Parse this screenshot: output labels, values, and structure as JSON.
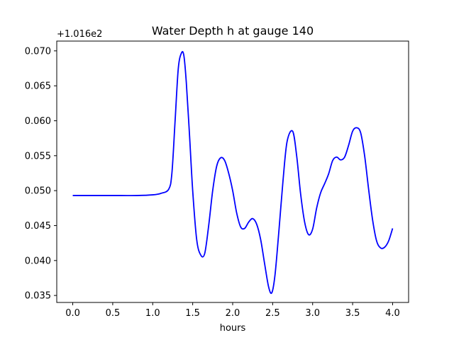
{
  "chart_data": {
    "type": "line",
    "title": "Water Depth h at gauge 140",
    "xlabel": "hours",
    "ylabel": "",
    "y_offset_label": "+1.016e2",
    "xlim": [
      -0.2,
      4.2
    ],
    "ylim": [
      0.034,
      0.0714
    ],
    "grid": false,
    "line_color": "#0000ff",
    "x_ticks": [
      0.0,
      0.5,
      1.0,
      1.5,
      2.0,
      2.5,
      3.0,
      3.5,
      4.0
    ],
    "x_tick_labels": [
      "0.0",
      "0.5",
      "1.0",
      "1.5",
      "2.0",
      "2.5",
      "3.0",
      "3.5",
      "4.0"
    ],
    "y_ticks": [
      0.035,
      0.04,
      0.045,
      0.05,
      0.055,
      0.06,
      0.065,
      0.07
    ],
    "y_tick_labels": [
      "0.035",
      "0.040",
      "0.045",
      "0.050",
      "0.055",
      "0.060",
      "0.065",
      "0.070"
    ],
    "series": [
      {
        "x": [
          0.0,
          0.3,
          0.6,
          0.8,
          1.0,
          1.1,
          1.2,
          1.24,
          1.28,
          1.32,
          1.36,
          1.39,
          1.42,
          1.46,
          1.5,
          1.55,
          1.6,
          1.65,
          1.7,
          1.75,
          1.8,
          1.85,
          1.9,
          1.95,
          2.0,
          2.05,
          2.1,
          2.15,
          2.2,
          2.25,
          2.3,
          2.35,
          2.4,
          2.45,
          2.49,
          2.53,
          2.58,
          2.63,
          2.68,
          2.75,
          2.8,
          2.85,
          2.9,
          2.95,
          3.0,
          3.05,
          3.1,
          3.15,
          3.2,
          3.25,
          3.3,
          3.35,
          3.4,
          3.45,
          3.5,
          3.55,
          3.6,
          3.65,
          3.7,
          3.75,
          3.8,
          3.85,
          3.9,
          3.95,
          4.0
        ],
        "y": [
          0.0493,
          0.0493,
          0.0493,
          0.0493,
          0.0494,
          0.0496,
          0.0502,
          0.0525,
          0.06,
          0.0675,
          0.0697,
          0.0693,
          0.0655,
          0.058,
          0.05,
          0.043,
          0.0408,
          0.041,
          0.045,
          0.05,
          0.0535,
          0.0547,
          0.0543,
          0.0525,
          0.05,
          0.0468,
          0.0448,
          0.0446,
          0.0455,
          0.046,
          0.0452,
          0.043,
          0.0395,
          0.0362,
          0.0354,
          0.038,
          0.0445,
          0.0515,
          0.057,
          0.0585,
          0.055,
          0.0495,
          0.0455,
          0.0437,
          0.0445,
          0.0475,
          0.0497,
          0.051,
          0.0524,
          0.0543,
          0.0548,
          0.0544,
          0.0548,
          0.0565,
          0.0585,
          0.059,
          0.0583,
          0.055,
          0.0502,
          0.0458,
          0.0428,
          0.0418,
          0.0419,
          0.0428,
          0.0446
        ]
      }
    ]
  }
}
